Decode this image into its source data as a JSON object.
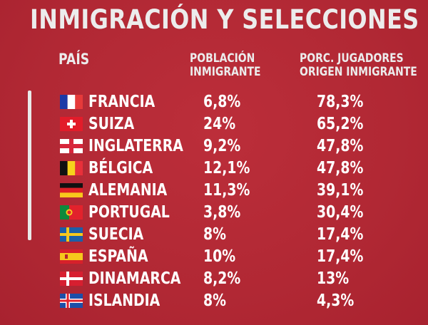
{
  "title": "INMIGRACIÓN Y SELECCIONES",
  "headers": {
    "country": "PAÍS",
    "population_line1": "POBLACIÓN",
    "population_line2": "INMIGRANTE",
    "players_line1": "PORC. JUGADORES",
    "players_line2": "ORIGEN INMIGRANTE"
  },
  "rows": [
    {
      "country": "FRANCIA",
      "flag": "france-flag-icon",
      "population": "6,8%",
      "players": "78,3%"
    },
    {
      "country": "SUIZA",
      "flag": "switzerland-flag-icon",
      "population": "24%",
      "players": "65,2%"
    },
    {
      "country": "INGLATERRA",
      "flag": "england-flag-icon",
      "population": "9,2%",
      "players": "47,8%"
    },
    {
      "country": "BÉLGICA",
      "flag": "belgium-flag-icon",
      "population": "12,1%",
      "players": "47,8%"
    },
    {
      "country": "ALEMANIA",
      "flag": "germany-flag-icon",
      "population": "11,3%",
      "players": "39,1%"
    },
    {
      "country": "PORTUGAL",
      "flag": "portugal-flag-icon",
      "population": "3,8%",
      "players": "30,4%"
    },
    {
      "country": "SUECIA",
      "flag": "sweden-flag-icon",
      "population": "8%",
      "players": "17,4%"
    },
    {
      "country": "ESPAÑA",
      "flag": "spain-flag-icon",
      "population": "10%",
      "players": "17,4%"
    },
    {
      "country": "DINAMARCA",
      "flag": "denmark-flag-icon",
      "population": "8,2%",
      "players": "13%"
    },
    {
      "country": "ISLANDIA",
      "flag": "iceland-flag-icon",
      "population": "8%",
      "players": "4,3%"
    }
  ],
  "colors": {
    "background": "#b62a36",
    "text": "#ffffff"
  }
}
